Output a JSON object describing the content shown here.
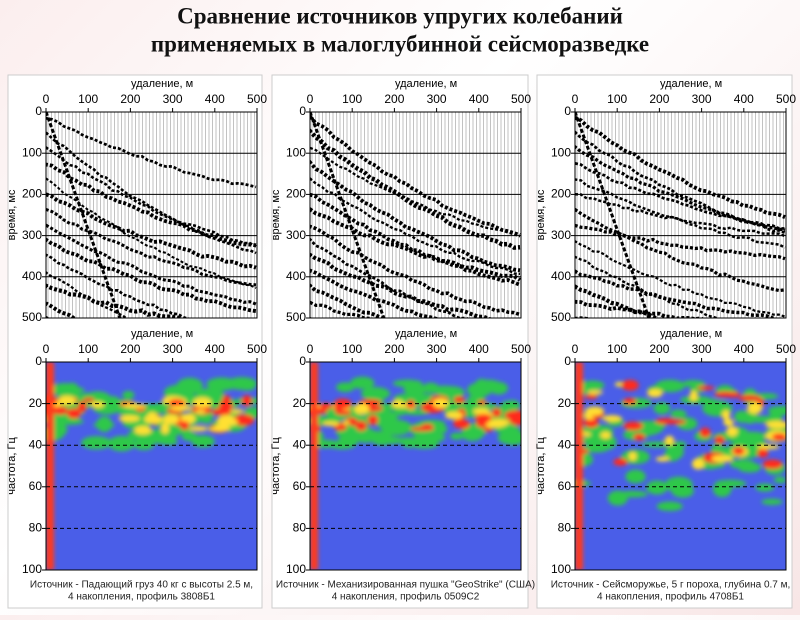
{
  "header": {
    "title_lines": [
      "Сравнение источников упругих колебаний",
      "применяемых в малоглубинной сейсморазведке"
    ]
  },
  "panels": [
    {
      "seismogram": {
        "x_label": "удаление, м",
        "y_label": "время, мс",
        "x_ticks": [
          0,
          100,
          200,
          300,
          400,
          500
        ],
        "y_ticks": [
          0,
          100,
          200,
          300,
          400,
          500
        ]
      },
      "spectrum": {
        "x_label": "удаление, м",
        "y_label": "частота, Гц",
        "x_ticks": [
          0,
          100,
          200,
          300,
          400,
          500
        ],
        "y_ticks": [
          0,
          20,
          40,
          60,
          80,
          100
        ]
      },
      "caption_lines": [
        "Источник - Падающий груз 40 кг с высоты 2.5 м,",
        "4 накопления, профиль 3808Б1"
      ]
    },
    {
      "seismogram": {
        "x_label": "удаление, м",
        "y_label": "время, мс",
        "x_ticks": [
          0,
          100,
          200,
          300,
          400,
          500
        ],
        "y_ticks": [
          0,
          100,
          200,
          300,
          400,
          500
        ]
      },
      "spectrum": {
        "x_label": "удаление, м",
        "y_label": "частота, Гц",
        "x_ticks": [
          0,
          100,
          200,
          300,
          400,
          500
        ],
        "y_ticks": [
          0,
          20,
          40,
          60,
          80,
          100
        ]
      },
      "caption_lines": [
        "Источник - Механизированная пушка \"GeoStrike\" (США)",
        "4 накопления, профиль 0509С2"
      ]
    },
    {
      "seismogram": {
        "x_label": "удаление, м",
        "y_label": "время, мс",
        "x_ticks": [
          0,
          100,
          200,
          300,
          400,
          500
        ],
        "y_ticks": [
          0,
          100,
          200,
          300,
          400,
          500
        ]
      },
      "spectrum": {
        "x_label": "удаление, м",
        "y_label": "частота, Гц",
        "x_ticks": [
          0,
          100,
          200,
          300,
          400,
          500
        ],
        "y_ticks": [
          0,
          20,
          40,
          60,
          80,
          100
        ]
      },
      "caption_lines": [
        "Источник - Сейсморужье, 5 г пороха, глубина 0.7 м,",
        "4 накопления, профиль 4708Б1"
      ]
    }
  ]
}
